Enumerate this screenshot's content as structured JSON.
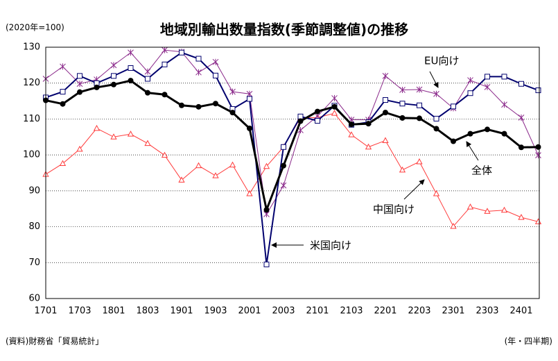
{
  "chart_data": {
    "type": "line",
    "title": "地域別輸出数量指数(季節調整値)の推移",
    "unit_note": "(2020年=100)",
    "source": "(資料)財務省「貿易統計」",
    "x_label": "(年・四半期)",
    "categories": [
      "1701",
      null,
      "1703",
      null,
      "1801",
      null,
      "1803",
      null,
      "1901",
      null,
      "1903",
      null,
      "2001",
      null,
      "2003",
      null,
      "2101",
      null,
      "2103",
      null,
      "2201",
      null,
      "2203",
      null,
      "2301",
      null,
      "2303",
      null,
      "2401",
      null
    ],
    "ylim": [
      60,
      130
    ],
    "yticks": [
      60,
      70,
      80,
      90,
      100,
      110,
      120,
      130
    ],
    "grid": true,
    "series": [
      {
        "name": "全体",
        "color": "#000000",
        "marker": "circle",
        "values": [
          115.2,
          114.2,
          117.5,
          118.8,
          119.6,
          120.7,
          117.3,
          116.8,
          113.8,
          113.4,
          114.3,
          111.8,
          107.4,
          84.7,
          97,
          109.4,
          112.1,
          113.4,
          108.5,
          108.7,
          111.8,
          110.3,
          110.2,
          107.3,
          103.8,
          105.9,
          107.1,
          105.9,
          102.1,
          102.2
        ]
      },
      {
        "name": "米国向け",
        "color": "#00006e",
        "marker": "square",
        "values": [
          116,
          117.6,
          122,
          120,
          122,
          124.2,
          121.2,
          125.2,
          128.5,
          126.8,
          122.1,
          112.8,
          115.6,
          69.5,
          102.2,
          110.7,
          109.5,
          113.7,
          108.4,
          109.1,
          115.3,
          114.3,
          113.8,
          110.1,
          113.5,
          117.2,
          121.8,
          121.8,
          119.8,
          118
        ]
      },
      {
        "name": "EU向け",
        "color": "#8b2a8b",
        "marker": "asterisk",
        "values": [
          121.2,
          124.6,
          119.8,
          121,
          125,
          128.5,
          123.2,
          129.2,
          128.7,
          123,
          125.9,
          117.6,
          117,
          83.5,
          91.5,
          106.9,
          110.8,
          115.8,
          109.8,
          109.8,
          122,
          118.1,
          118.2,
          117,
          113,
          120.8,
          118.9,
          114,
          110.4,
          99.9
        ]
      },
      {
        "name": "中国向け",
        "color": "#ff3b3b",
        "marker": "triangle",
        "values": [
          94.6,
          97.6,
          101.6,
          107.4,
          105,
          105.8,
          103.2,
          99.9,
          93,
          97,
          94.2,
          97.2,
          89.2,
          96.8,
          102.2,
          110.3,
          110.4,
          111.6,
          105.6,
          102.2,
          104,
          95.8,
          98.1,
          89.2,
          80.1,
          85.5,
          84.3,
          84.6,
          82.6,
          81.4
        ]
      }
    ]
  }
}
